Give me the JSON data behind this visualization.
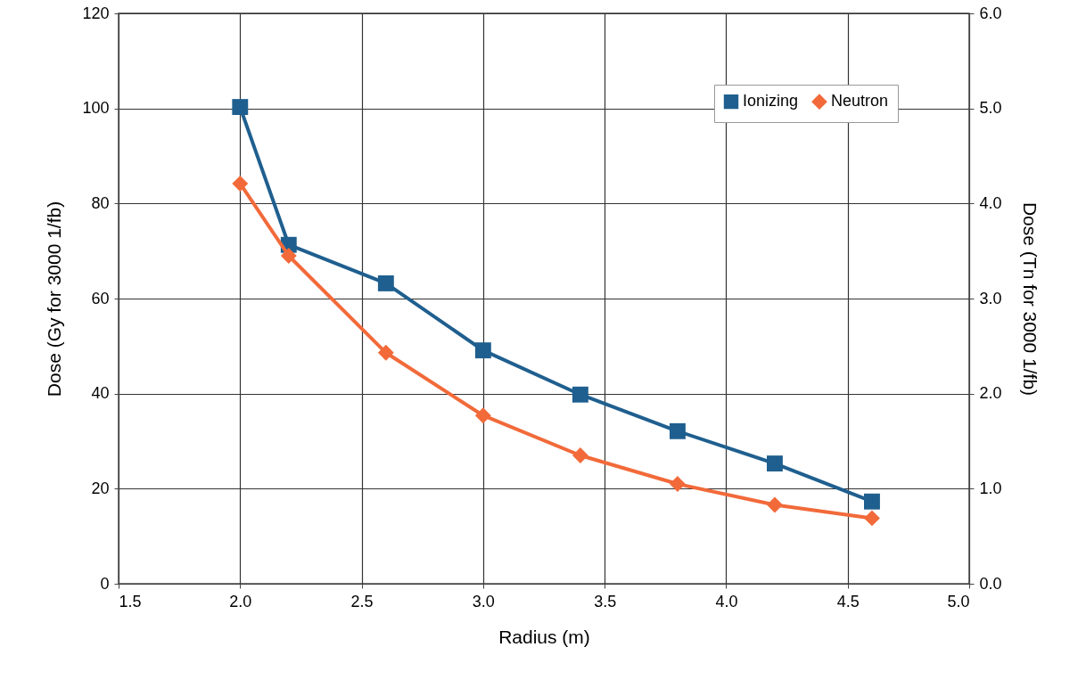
{
  "chart_data": {
    "type": "line",
    "xlabel": "Radius (m)",
    "ylabel": "Dose (Gy for 3000 1/fb)",
    "y2label": "Dose (Tn for 3000 1/fb)",
    "x": [
      2.0,
      2.2,
      2.6,
      3.0,
      3.4,
      3.8,
      4.2,
      4.6
    ],
    "series": [
      {
        "name": "Ionizing",
        "color": "#1f5f8f",
        "marker": "square",
        "values": [
          100.3,
          71.3,
          63.2,
          49.1,
          39.8,
          32.1,
          25.3,
          17.3
        ]
      },
      {
        "name": "Neutron",
        "color": "#f26a3a",
        "marker": "diamond",
        "axis": "y2",
        "values": [
          4.21,
          3.45,
          2.43,
          1.77,
          1.35,
          1.05,
          0.83,
          0.69
        ]
      }
    ],
    "xlim": [
      1.5,
      5.0
    ],
    "xticks": [
      {
        "value": 1.5,
        "label": "1.5"
      },
      {
        "value": 2,
        "label": "2.0"
      },
      {
        "value": 2.5,
        "label": "2.5"
      },
      {
        "value": 3,
        "label": "3.0"
      },
      {
        "value": 3.5,
        "label": "3.5"
      },
      {
        "value": 4,
        "label": "4.0"
      },
      {
        "value": 4.5,
        "label": "4.5"
      },
      {
        "value": 5,
        "label": "5.0"
      }
    ],
    "ylim": [
      0,
      120
    ],
    "yticks": [
      0,
      20,
      40,
      60,
      80,
      100,
      120
    ],
    "y2lim": [
      0,
      6
    ],
    "y2ticks": [
      {
        "value": 0,
        "label": "0.0"
      },
      {
        "value": 1,
        "label": "1.0"
      },
      {
        "value": 2,
        "label": "2.0"
      },
      {
        "value": 3,
        "label": "3.0"
      },
      {
        "value": 4,
        "label": "4.0"
      },
      {
        "value": 5,
        "label": "5.0"
      },
      {
        "value": 6,
        "label": "6.0"
      }
    ],
    "grid": true,
    "legend": "top right",
    "line_style": "solid"
  }
}
